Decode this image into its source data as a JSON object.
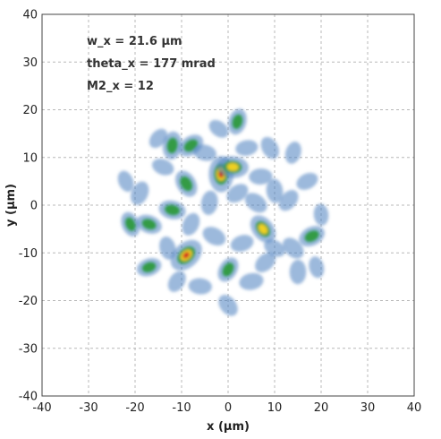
{
  "chart_data": {
    "type": "heatmap",
    "xlabel": "x (µm)",
    "ylabel": "y (µm)",
    "xlim": [
      -40,
      40
    ],
    "ylim": [
      -40,
      40
    ],
    "x_ticks": [
      -40,
      -30,
      -20,
      -10,
      0,
      10,
      20,
      30,
      40
    ],
    "y_ticks": [
      -40,
      -30,
      -20,
      -10,
      0,
      10,
      20,
      30,
      40
    ],
    "grid": true,
    "annotations": [
      "w_x = 21.6 µm",
      "theta_x = 177 mrad",
      "M2_x = 12"
    ],
    "colormap": [
      "#ffffff",
      "#4a7fc0",
      "#2e9a3e",
      "#f0d020",
      "#d02020"
    ],
    "spots": [
      {
        "x": -1.5,
        "y": 6.5,
        "intensity": 1.0
      },
      {
        "x": -9,
        "y": -10.5,
        "intensity": 1.0
      },
      {
        "x": 1,
        "y": 8,
        "intensity": 0.75
      },
      {
        "x": 7.5,
        "y": -5,
        "intensity": 0.7
      },
      {
        "x": -12,
        "y": 12.5,
        "intensity": 0.55
      },
      {
        "x": -8,
        "y": 12.5,
        "intensity": 0.5
      },
      {
        "x": -12,
        "y": -1,
        "intensity": 0.5
      },
      {
        "x": -9,
        "y": 4.5,
        "intensity": 0.55
      },
      {
        "x": 2,
        "y": 17.5,
        "intensity": 0.45
      },
      {
        "x": 18,
        "y": -6.5,
        "intensity": 0.5
      },
      {
        "x": -17,
        "y": -4,
        "intensity": 0.45
      },
      {
        "x": -21,
        "y": -4,
        "intensity": 0.4
      },
      {
        "x": -19,
        "y": 2.5,
        "intensity": 0.35
      },
      {
        "x": -17,
        "y": -13,
        "intensity": 0.4
      },
      {
        "x": -3,
        "y": -6.5,
        "intensity": 0.35
      },
      {
        "x": -13,
        "y": -9,
        "intensity": 0.3
      },
      {
        "x": 0,
        "y": -13.5,
        "intensity": 0.45
      },
      {
        "x": 5,
        "y": -16,
        "intensity": 0.35
      },
      {
        "x": 6,
        "y": 0.5,
        "intensity": 0.35
      },
      {
        "x": 10,
        "y": 3,
        "intensity": 0.35
      },
      {
        "x": 13,
        "y": 1,
        "intensity": 0.3
      },
      {
        "x": 7,
        "y": 6,
        "intensity": 0.3
      },
      {
        "x": 14,
        "y": -9,
        "intensity": 0.35
      },
      {
        "x": 15,
        "y": -14,
        "intensity": 0.35
      },
      {
        "x": 8,
        "y": -12,
        "intensity": 0.3
      },
      {
        "x": -6,
        "y": -17,
        "intensity": 0.3
      },
      {
        "x": 0,
        "y": -21,
        "intensity": 0.3
      },
      {
        "x": -4,
        "y": 0.5,
        "intensity": 0.35
      },
      {
        "x": 2,
        "y": 2.5,
        "intensity": 0.3
      },
      {
        "x": -5,
        "y": 11,
        "intensity": 0.3
      },
      {
        "x": 9,
        "y": 12,
        "intensity": 0.3
      },
      {
        "x": 14,
        "y": 11,
        "intensity": 0.25
      },
      {
        "x": 17,
        "y": 5,
        "intensity": 0.25
      },
      {
        "x": -14,
        "y": 8,
        "intensity": 0.25
      },
      {
        "x": -22,
        "y": 5,
        "intensity": 0.2
      },
      {
        "x": -8,
        "y": -4,
        "intensity": 0.3
      },
      {
        "x": 3,
        "y": -8,
        "intensity": 0.3
      },
      {
        "x": 10,
        "y": -9,
        "intensity": 0.25
      },
      {
        "x": 19,
        "y": -13,
        "intensity": 0.2
      },
      {
        "x": -11,
        "y": -16,
        "intensity": 0.25
      },
      {
        "x": 4,
        "y": 12,
        "intensity": 0.25
      },
      {
        "x": -2,
        "y": 16,
        "intensity": 0.2
      },
      {
        "x": 20,
        "y": -2,
        "intensity": 0.2
      },
      {
        "x": -15,
        "y": 14,
        "intensity": 0.2
      }
    ]
  }
}
